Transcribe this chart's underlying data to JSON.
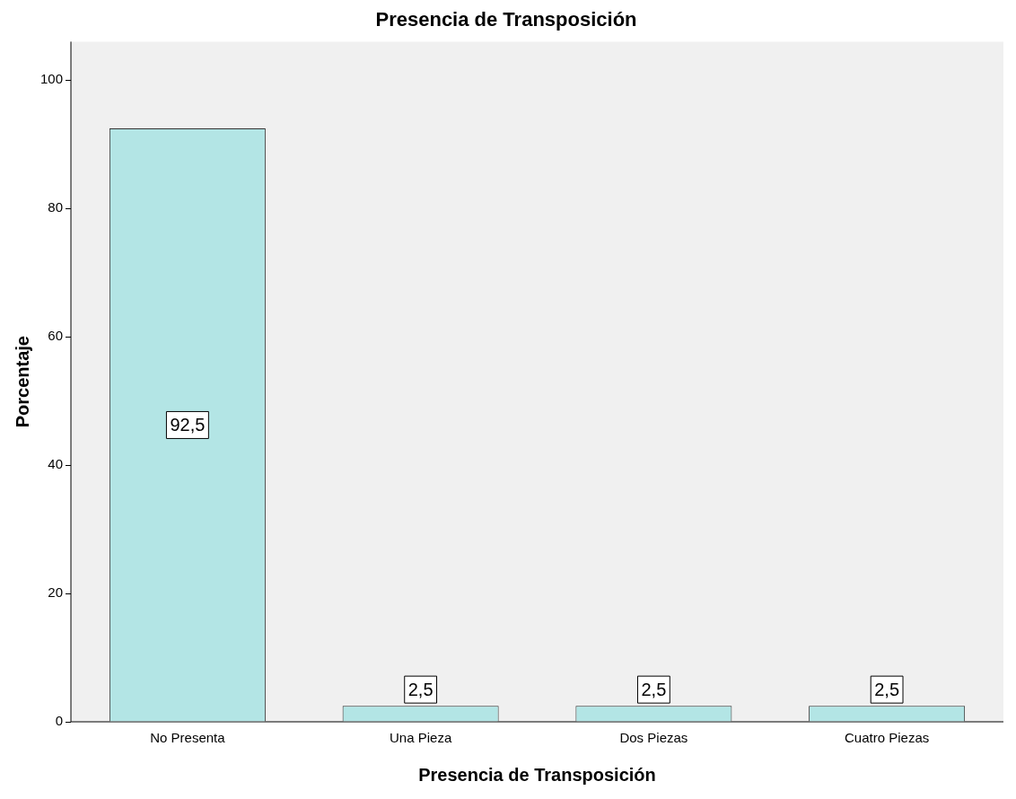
{
  "chart_data": {
    "type": "bar",
    "title": "Presencia de Transposición",
    "xlabel": "Presencia de Transposición",
    "ylabel": "Porcentaje",
    "categories": [
      "No Presenta",
      "Una Pieza",
      "Dos Piezas",
      "Cuatro Piezas"
    ],
    "values": [
      92.5,
      2.5,
      2.5,
      2.5
    ],
    "value_labels": [
      "92,5",
      "2,5",
      "2,5",
      "2,5"
    ],
    "color": "#b3e5e5",
    "ylim": [
      0,
      106
    ],
    "yticks": [
      0,
      20,
      40,
      60,
      80,
      100
    ],
    "grid": false,
    "legend": false
  }
}
